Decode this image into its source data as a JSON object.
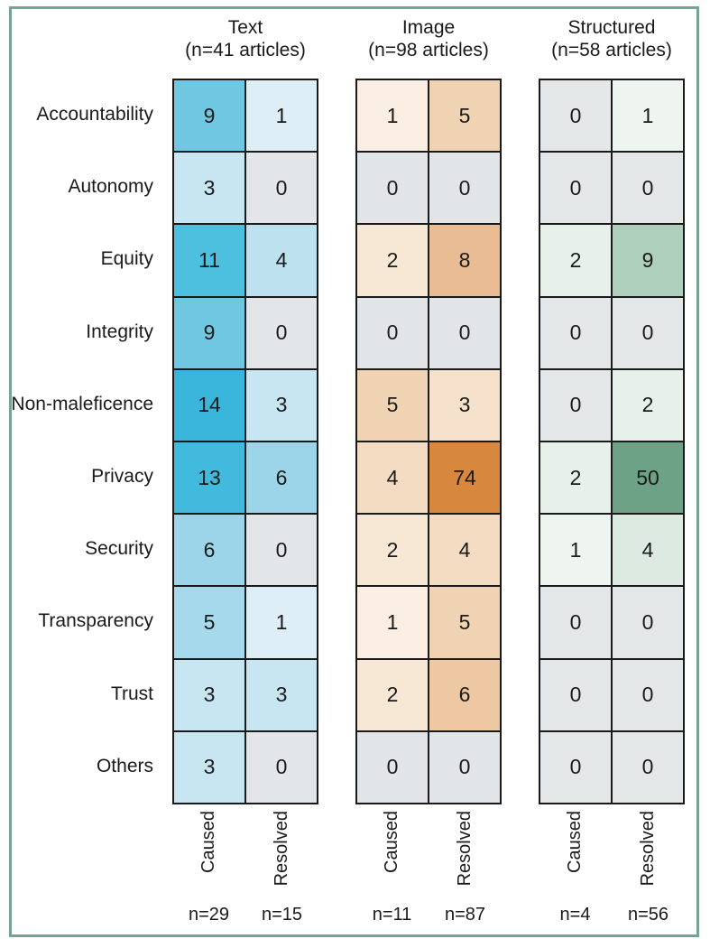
{
  "figure": {
    "frame_color": "#76a493",
    "grid_line_color": "#1a1a1a",
    "zero_cell_color": "#e3e6e8"
  },
  "rows": [
    "Accountability",
    "Autonomy",
    "Equity",
    "Integrity",
    "Non-maleficence",
    "Privacy",
    "Security",
    "Transparency",
    "Trust",
    "Others"
  ],
  "chart_data": {
    "type": "heatmap",
    "row_categories": [
      "Accountability",
      "Autonomy",
      "Equity",
      "Integrity",
      "Non-maleficence",
      "Privacy",
      "Security",
      "Transparency",
      "Trust",
      "Others"
    ],
    "legend_position": "none",
    "grid": true,
    "panels": [
      {
        "title": "Text",
        "subtitle": "(n=41 articles)",
        "columns": [
          "Caused",
          "Resolved"
        ],
        "column_totals": [
          "n=29",
          "n=15"
        ],
        "accent": "#3ab6dc",
        "values": [
          [
            9,
            1
          ],
          [
            3,
            0
          ],
          [
            11,
            4
          ],
          [
            9,
            0
          ],
          [
            14,
            3
          ],
          [
            13,
            6
          ],
          [
            6,
            0
          ],
          [
            5,
            1
          ],
          [
            3,
            3
          ],
          [
            3,
            0
          ]
        ],
        "colors": [
          [
            "#6fc7e1",
            "#ddeef6"
          ],
          [
            "#c8e5f2",
            "#e3e6e8"
          ],
          [
            "#4cc0de",
            "#bee1f0"
          ],
          [
            "#6fc7e1",
            "#e3e6e8"
          ],
          [
            "#3ab6dc",
            "#c8e5f2"
          ],
          [
            "#42badd",
            "#9cd5e9"
          ],
          [
            "#9cd5e9",
            "#e3e6e8"
          ],
          [
            "#a6d9eb",
            "#ddeef6"
          ],
          [
            "#c8e5f2",
            "#c8e5f2"
          ],
          [
            "#c8e5f2",
            "#e3e6e8"
          ]
        ]
      },
      {
        "title": "Image",
        "subtitle": "(n=98 articles)",
        "columns": [
          "Caused",
          "Resolved"
        ],
        "column_totals": [
          "n=11",
          "n=87"
        ],
        "accent": "#d8873f",
        "values": [
          [
            1,
            5
          ],
          [
            0,
            0
          ],
          [
            2,
            8
          ],
          [
            0,
            0
          ],
          [
            5,
            3
          ],
          [
            4,
            74
          ],
          [
            2,
            4
          ],
          [
            1,
            5
          ],
          [
            2,
            6
          ],
          [
            0,
            0
          ]
        ],
        "colors": [
          [
            "#faefe2",
            "#f0d3b3"
          ],
          [
            "#e2e5e8",
            "#e2e5e8"
          ],
          [
            "#f7e7d5",
            "#eabc93"
          ],
          [
            "#e2e5e8",
            "#e2e5e8"
          ],
          [
            "#f0d3b3",
            "#f6e2cc"
          ],
          [
            "#f3dcc2",
            "#d8873f"
          ],
          [
            "#f7e7d5",
            "#f3dcc2"
          ],
          [
            "#faefe2",
            "#f0d3b3"
          ],
          [
            "#f7e7d5",
            "#edc8a3"
          ],
          [
            "#e2e5e8",
            "#e2e5e8"
          ]
        ]
      },
      {
        "title": "Structured",
        "subtitle": "(n=58 articles)",
        "columns": [
          "Caused",
          "Resolved"
        ],
        "column_totals": [
          "n=4",
          "n=56"
        ],
        "accent": "#6ea287",
        "values": [
          [
            0,
            1
          ],
          [
            0,
            0
          ],
          [
            2,
            9
          ],
          [
            0,
            0
          ],
          [
            0,
            2
          ],
          [
            2,
            50
          ],
          [
            1,
            4
          ],
          [
            0,
            0
          ],
          [
            0,
            0
          ],
          [
            0,
            0
          ]
        ],
        "colors": [
          [
            "#e4e7e7",
            "#eef4f0"
          ],
          [
            "#e4e7e7",
            "#e4e7e7"
          ],
          [
            "#e7f0ea",
            "#aecfbb"
          ],
          [
            "#e4e7e7",
            "#e4e7e7"
          ],
          [
            "#e4e7e7",
            "#e7f0ea"
          ],
          [
            "#e7f0ea",
            "#6ea287"
          ],
          [
            "#eef4f0",
            "#ddeae2"
          ],
          [
            "#e4e7e7",
            "#e4e7e7"
          ],
          [
            "#e4e7e7",
            "#e4e7e7"
          ],
          [
            "#e4e7e7",
            "#e4e7e7"
          ]
        ]
      }
    ]
  }
}
